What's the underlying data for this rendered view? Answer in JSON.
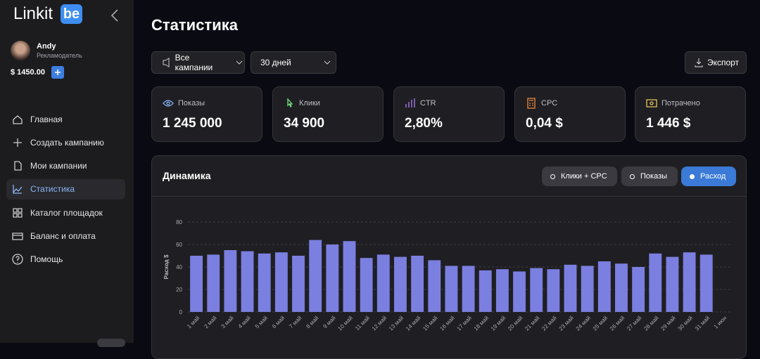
{
  "sidebar": {
    "logo": "Linkit",
    "logo_badge": "be",
    "user": {
      "name": "Andy",
      "role": "Рекламодатель"
    },
    "balance": "$ 1450.00",
    "nav": [
      "Главная",
      "Создать кампанию",
      "Мои кампании",
      "Статистика",
      "Каталог площадок",
      "Баланс и оплата",
      "Помощь"
    ],
    "active": 3
  },
  "header": {
    "title": "Статистика"
  },
  "filters": {
    "campaign": "Все кампании",
    "period": "30 дней",
    "export": "Экспорт"
  },
  "stats": [
    {
      "label": "Показы",
      "value": "1 245 000"
    },
    {
      "label": "Клики",
      "value": "34 900"
    },
    {
      "label": "CTR",
      "value": "2,80%"
    },
    {
      "label": "CPC",
      "value": "0,04 $"
    },
    {
      "label": "Потрачено",
      "value": "1 446 $"
    }
  ],
  "chart_panel": {
    "tabs": [
      "Клики + CPC",
      "Показы",
      "Расход"
    ],
    "active_tab": 2
  },
  "chart_data": {
    "type": "bar",
    "title": "Динамика",
    "y_label": "Расход $",
    "categories": [
      "1 май",
      "2 май",
      "3 май",
      "4 май",
      "5 май",
      "6 май",
      "7 май",
      "8 май",
      "9 май",
      "10 май",
      "11 май",
      "12 май",
      "13 май",
      "14 май",
      "15 май",
      "16 май",
      "17 май",
      "18 май",
      "19 май",
      "20 май",
      "21 май",
      "22 май",
      "23 май",
      "24 май",
      "25 май",
      "26 май",
      "27 май",
      "28 май",
      "29 май",
      "30 май",
      "31 май",
      "1 июн"
    ],
    "values": [
      50,
      51,
      55,
      54,
      52,
      53,
      50,
      64,
      60,
      63,
      48,
      51,
      49,
      50,
      46,
      41,
      41,
      37,
      38,
      36,
      39,
      38,
      42,
      41,
      45,
      43,
      40,
      52,
      49,
      53,
      51,
      null
    ],
    "color": "#7b7fe0",
    "ylim": [
      0,
      80
    ],
    "yticks": [
      0,
      20,
      40,
      60,
      80
    ],
    "grid": true
  }
}
